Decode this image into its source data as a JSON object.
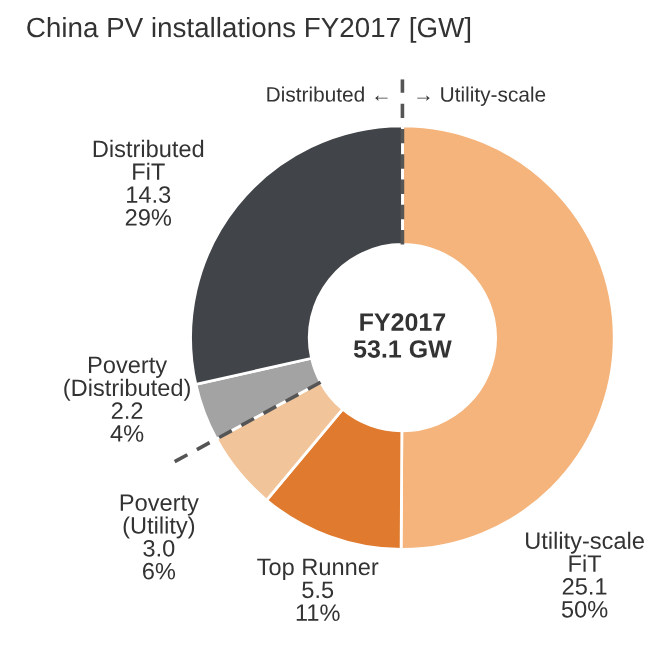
{
  "chart_data": {
    "type": "donut",
    "title": "China PV installations FY2017 [GW]",
    "categories": [
      "Utility-scale\nFiT",
      "Top Runner",
      "Poverty\n(Utility)",
      "Poverty\n(Distributed)",
      "Distributed\nFiT"
    ],
    "values": [
      25.1,
      5.5,
      3.0,
      2.2,
      14.3
    ],
    "value_labels": [
      "25.1\n50%",
      "5.5\n11%",
      "3.0\n6%",
      "2.2\n4%",
      "14.3\n29%"
    ],
    "colors": [
      "#f4b47c",
      "#e07a2e",
      "#f2c49a",
      "#a3a3a3",
      "#414448"
    ],
    "annotations": [
      "FY2017\n53.1 GW",
      "Distributed ←",
      "→ Utility-scale"
    ]
  }
}
